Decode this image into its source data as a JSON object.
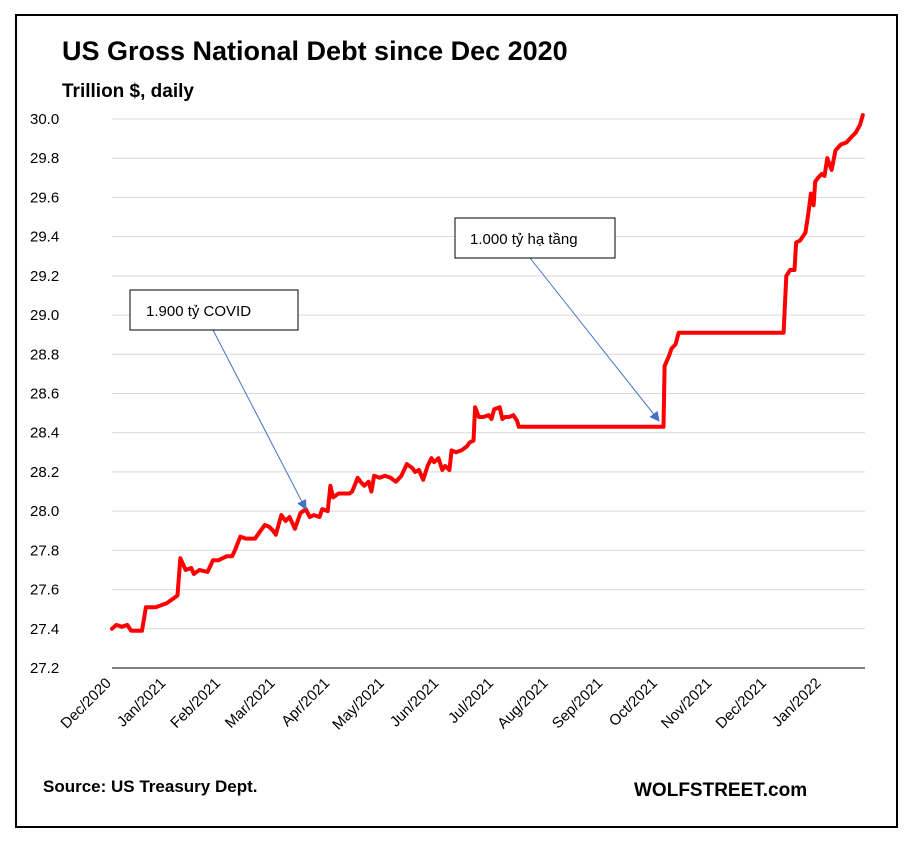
{
  "chart_data": {
    "type": "line",
    "title": "US Gross National Debt since Dec 2020",
    "subtitle": "Trillion $, daily",
    "xlabel": "",
    "ylabel": "",
    "ylim": [
      27.2,
      30.0
    ],
    "yticks": [
      "27.2",
      "27.4",
      "27.6",
      "27.8",
      "28.0",
      "28.2",
      "28.4",
      "28.6",
      "28.8",
      "29.0",
      "29.2",
      "29.4",
      "29.6",
      "29.8",
      "30.0"
    ],
    "xticks": [
      "Dec/2020",
      "Jan/2021",
      "Feb/2021",
      "Mar/2021",
      "Apr/2021",
      "May/2021",
      "Jun/2021",
      "Jul/2021",
      "Aug/2021",
      "Sep/2021",
      "Oct/2021",
      "Nov/2021",
      "Dec/2021",
      "Jan/2022"
    ],
    "grid": true,
    "line_color": "#ff0000",
    "series": [
      {
        "name": "",
        "values": [
          [
            0.0,
            27.4
          ],
          [
            0.08,
            27.42
          ],
          [
            0.18,
            27.41
          ],
          [
            0.28,
            27.42
          ],
          [
            0.35,
            27.39
          ],
          [
            0.55,
            27.39
          ],
          [
            0.62,
            27.51
          ],
          [
            0.8,
            27.51
          ],
          [
            1.0,
            27.53
          ],
          [
            1.1,
            27.55
          ],
          [
            1.2,
            27.57
          ],
          [
            1.25,
            27.76
          ],
          [
            1.35,
            27.7
          ],
          [
            1.45,
            27.71
          ],
          [
            1.5,
            27.68
          ],
          [
            1.6,
            27.7
          ],
          [
            1.75,
            27.69
          ],
          [
            1.85,
            27.75
          ],
          [
            1.95,
            27.75
          ],
          [
            2.1,
            27.77
          ],
          [
            2.2,
            27.77
          ],
          [
            2.25,
            27.8
          ],
          [
            2.35,
            27.87
          ],
          [
            2.45,
            27.86
          ],
          [
            2.55,
            27.86
          ],
          [
            2.62,
            27.86
          ],
          [
            2.72,
            27.9
          ],
          [
            2.8,
            27.93
          ],
          [
            2.88,
            27.92
          ],
          [
            2.95,
            27.9
          ],
          [
            3.0,
            27.88
          ],
          [
            3.1,
            27.98
          ],
          [
            3.18,
            27.95
          ],
          [
            3.25,
            27.97
          ],
          [
            3.35,
            27.91
          ],
          [
            3.45,
            27.99
          ],
          [
            3.55,
            28.01
          ],
          [
            3.62,
            27.97
          ],
          [
            3.7,
            27.98
          ],
          [
            3.8,
            27.97
          ],
          [
            3.85,
            28.01
          ],
          [
            3.95,
            28.0
          ],
          [
            4.0,
            28.13
          ],
          [
            4.05,
            28.07
          ],
          [
            4.15,
            28.09
          ],
          [
            4.25,
            28.09
          ],
          [
            4.35,
            28.09
          ],
          [
            4.4,
            28.1
          ],
          [
            4.5,
            28.17
          ],
          [
            4.55,
            28.15
          ],
          [
            4.62,
            28.13
          ],
          [
            4.7,
            28.15
          ],
          [
            4.75,
            28.1
          ],
          [
            4.8,
            28.18
          ],
          [
            4.9,
            28.17
          ],
          [
            5.0,
            28.18
          ],
          [
            5.1,
            28.17
          ],
          [
            5.2,
            28.15
          ],
          [
            5.3,
            28.18
          ],
          [
            5.4,
            28.24
          ],
          [
            5.5,
            28.22
          ],
          [
            5.55,
            28.2
          ],
          [
            5.62,
            28.21
          ],
          [
            5.7,
            28.16
          ],
          [
            5.78,
            28.23
          ],
          [
            5.85,
            28.27
          ],
          [
            5.9,
            28.25
          ],
          [
            5.98,
            28.27
          ],
          [
            6.05,
            28.21
          ],
          [
            6.1,
            28.23
          ],
          [
            6.18,
            28.21
          ],
          [
            6.22,
            28.31
          ],
          [
            6.3,
            28.3
          ],
          [
            6.4,
            28.31
          ],
          [
            6.5,
            28.33
          ],
          [
            6.55,
            28.35
          ],
          [
            6.62,
            28.36
          ],
          [
            6.65,
            28.53
          ],
          [
            6.72,
            28.48
          ],
          [
            6.8,
            28.48
          ],
          [
            6.9,
            28.49
          ],
          [
            6.95,
            28.47
          ],
          [
            7.0,
            28.52
          ],
          [
            7.1,
            28.53
          ],
          [
            7.15,
            28.47
          ],
          [
            7.2,
            28.48
          ],
          [
            7.28,
            28.48
          ],
          [
            7.35,
            28.49
          ],
          [
            7.42,
            28.46
          ],
          [
            7.45,
            28.43
          ],
          [
            8.0,
            28.43
          ],
          [
            9.0,
            28.43
          ],
          [
            10.0,
            28.43
          ],
          [
            10.1,
            28.43
          ],
          [
            10.12,
            28.74
          ],
          [
            10.2,
            28.79
          ],
          [
            10.25,
            28.83
          ],
          [
            10.32,
            28.85
          ],
          [
            10.38,
            28.91
          ],
          [
            11.0,
            28.91
          ],
          [
            12.0,
            28.91
          ],
          [
            12.3,
            28.91
          ],
          [
            12.35,
            29.2
          ],
          [
            12.42,
            29.23
          ],
          [
            12.5,
            29.23
          ],
          [
            12.53,
            29.37
          ],
          [
            12.6,
            29.38
          ],
          [
            12.7,
            29.42
          ],
          [
            12.75,
            29.51
          ],
          [
            12.8,
            29.62
          ],
          [
            12.85,
            29.56
          ],
          [
            12.88,
            29.68
          ],
          [
            12.93,
            29.7
          ],
          [
            13.0,
            29.72
          ],
          [
            13.05,
            29.71
          ],
          [
            13.1,
            29.8
          ],
          [
            13.18,
            29.74
          ],
          [
            13.25,
            29.84
          ],
          [
            13.35,
            29.87
          ],
          [
            13.45,
            29.88
          ],
          [
            13.55,
            29.91
          ],
          [
            13.62,
            29.93
          ],
          [
            13.7,
            29.97
          ],
          [
            13.75,
            30.02
          ]
        ]
      }
    ],
    "annotations": [
      {
        "text": "1.900 tỷ COVID",
        "target": [
          3.55,
          28.01
        ]
      },
      {
        "text": "1.000 tỷ hạ tầng",
        "target": [
          10.02,
          28.46
        ]
      }
    ]
  },
  "footer": {
    "source": "Source: US Treasury Dept.",
    "brand": "WOLFSTREET.com"
  }
}
